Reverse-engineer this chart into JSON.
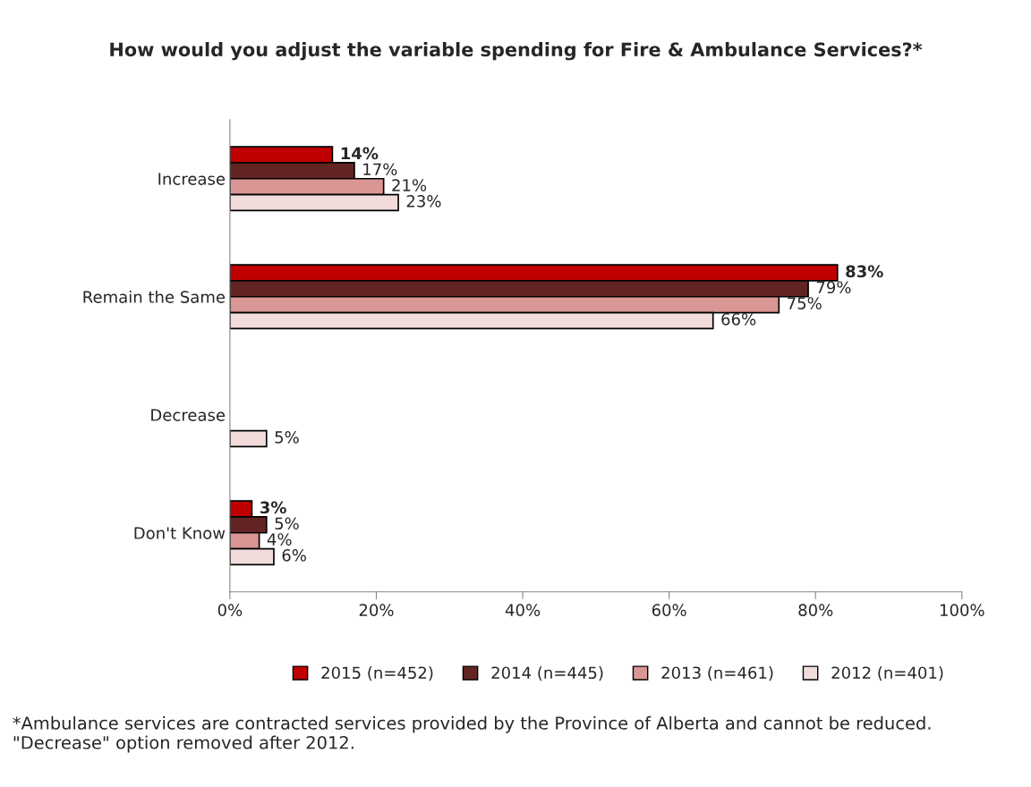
{
  "chart_data": {
    "type": "bar",
    "orientation": "horizontal",
    "title": "How would you adjust the variable spending for Fire & Ambulance Services?*",
    "categories": [
      "Increase",
      "Remain the Same",
      "Decrease",
      "Don't Know"
    ],
    "series": [
      {
        "name": "2015 (n=452)",
        "color": "#c00000",
        "values": [
          14,
          83,
          null,
          3
        ],
        "value_labels": [
          "14%",
          "83%",
          null,
          "3%"
        ]
      },
      {
        "name": "2014 (n=445)",
        "color": "#632523",
        "values": [
          17,
          79,
          null,
          5
        ],
        "value_labels": [
          "17%",
          "79%",
          null,
          "5%"
        ]
      },
      {
        "name": "2013 (n=461)",
        "color": "#d99694",
        "values": [
          21,
          75,
          null,
          4
        ],
        "value_labels": [
          "21%",
          "75%",
          null,
          "4%"
        ]
      },
      {
        "name": "2012 (n=401)",
        "color": "#f2dcdb",
        "values": [
          23,
          66,
          5,
          6
        ],
        "value_labels": [
          "23%",
          "66%",
          "5%",
          "6%"
        ]
      }
    ],
    "xlim": [
      0,
      100
    ],
    "xticks": [
      {
        "value": 0,
        "label": "0%"
      },
      {
        "value": 20,
        "label": "20%"
      },
      {
        "value": 40,
        "label": "40%"
      },
      {
        "value": 60,
        "label": "60%"
      },
      {
        "value": 80,
        "label": "80%"
      },
      {
        "value": 100,
        "label": "100%"
      }
    ],
    "grid": false,
    "legend": "bottom",
    "annotations": [
      "*Ambulance services are contracted services provided by the Province of Alberta and cannot be reduced. \"Decrease\" option removed after 2012."
    ]
  }
}
